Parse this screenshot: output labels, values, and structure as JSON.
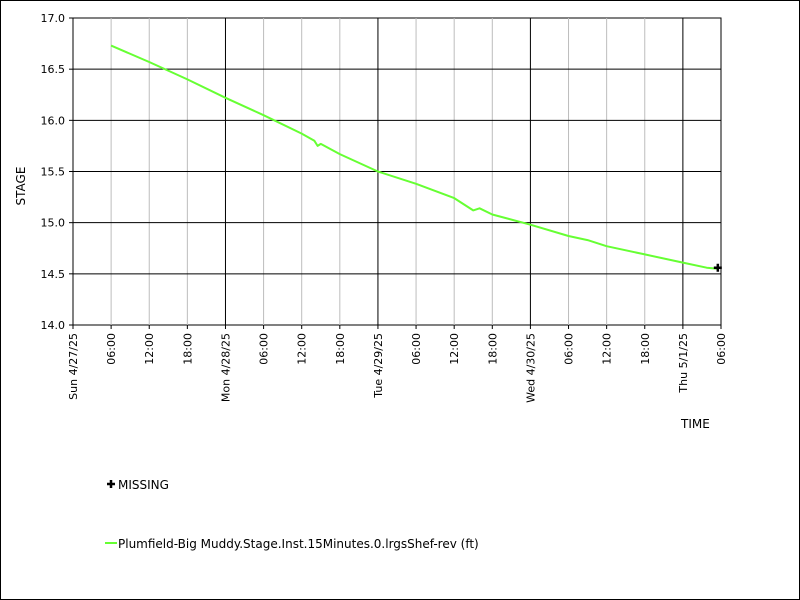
{
  "chart_data": {
    "type": "line",
    "title": "",
    "xlabel": "TIME",
    "ylabel": "STAGE",
    "ylim": [
      14.0,
      17.0
    ],
    "yticks": [
      "14.0",
      "14.5",
      "15.0",
      "15.5",
      "16.0",
      "16.5",
      "17.0"
    ],
    "xlim": [
      "2025-04-27 00:00",
      "2025-05-01 06:00"
    ],
    "xticks": [
      "Sun 4/27/25",
      "06:00",
      "12:00",
      "18:00",
      "Mon 4/28/25",
      "06:00",
      "12:00",
      "18:00",
      "Tue 4/29/25",
      "06:00",
      "12:00",
      "18:00",
      "Wed 4/30/25",
      "06:00",
      "12:00",
      "18:00",
      "Thu 5/1/25",
      "06:00"
    ],
    "grid": true,
    "legend": "below",
    "colors": {
      "series": "#66ff33",
      "missing": "#000000"
    },
    "series": [
      {
        "name": "Plumfield-Big Muddy.Stage.Inst.15Minutes.0.lrgsShef-rev (ft)",
        "points": [
          [
            "2025-04-27 06:00",
            16.73
          ],
          [
            "2025-04-27 12:00",
            16.57
          ],
          [
            "2025-04-27 18:00",
            16.4
          ],
          [
            "2025-04-28 00:00",
            16.22
          ],
          [
            "2025-04-28 06:00",
            16.05
          ],
          [
            "2025-04-28 12:00",
            15.87
          ],
          [
            "2025-04-28 14:00",
            15.8
          ],
          [
            "2025-04-28 14:30",
            15.75
          ],
          [
            "2025-04-28 15:00",
            15.77
          ],
          [
            "2025-04-28 18:00",
            15.67
          ],
          [
            "2025-04-29 00:00",
            15.5
          ],
          [
            "2025-04-29 06:00",
            15.38
          ],
          [
            "2025-04-29 12:00",
            15.24
          ],
          [
            "2025-04-29 15:00",
            15.12
          ],
          [
            "2025-04-29 16:00",
            15.14
          ],
          [
            "2025-04-29 18:00",
            15.08
          ],
          [
            "2025-04-30 00:00",
            14.98
          ],
          [
            "2025-04-30 06:00",
            14.87
          ],
          [
            "2025-04-30 09:00",
            14.83
          ],
          [
            "2025-04-30 12:00",
            14.77
          ],
          [
            "2025-04-30 18:00",
            14.69
          ],
          [
            "2025-05-01 00:00",
            14.61
          ],
          [
            "2025-05-01 03:45",
            14.56
          ],
          [
            "2025-05-01 05:30",
            14.55
          ]
        ]
      }
    ],
    "missing": {
      "label": "MISSING",
      "points": [
        [
          "2025-05-01 05:30",
          14.56
        ]
      ]
    }
  }
}
